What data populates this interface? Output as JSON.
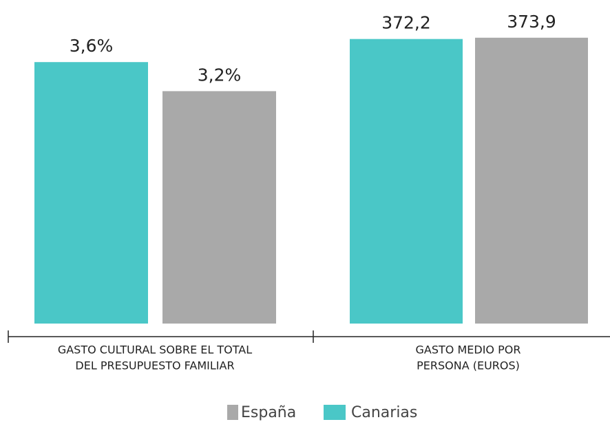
{
  "legend": [
    {
      "name": "España",
      "color": "#a9a9a9"
    },
    {
      "name": "Canarias",
      "color": "#4ac7c7"
    }
  ],
  "chart_data": [
    {
      "type": "bar",
      "xlabel": [
        "GASTO CULTURAL SOBRE EL TOTAL",
        "DEL PRESUPUESTO FAMILIAR"
      ],
      "ylim": [
        0,
        4
      ],
      "series": [
        {
          "color": "#4ac7c7",
          "values": [
            3.6
          ],
          "value_labels": [
            "3,6%"
          ]
        },
        {
          "color": "#a9a9a9",
          "values": [
            3.2
          ],
          "value_labels": [
            "3,2%"
          ]
        }
      ]
    },
    {
      "type": "bar",
      "xlabel": [
        "GASTO MEDIO POR",
        "PERSONA (EUROS)"
      ],
      "ylim": [
        0,
        380
      ],
      "series": [
        {
          "color": "#4ac7c7",
          "values": [
            372.2
          ],
          "value_labels": [
            "372,2"
          ]
        },
        {
          "color": "#a9a9a9",
          "values": [
            373.9
          ],
          "value_labels": [
            "373,9"
          ]
        }
      ]
    }
  ]
}
